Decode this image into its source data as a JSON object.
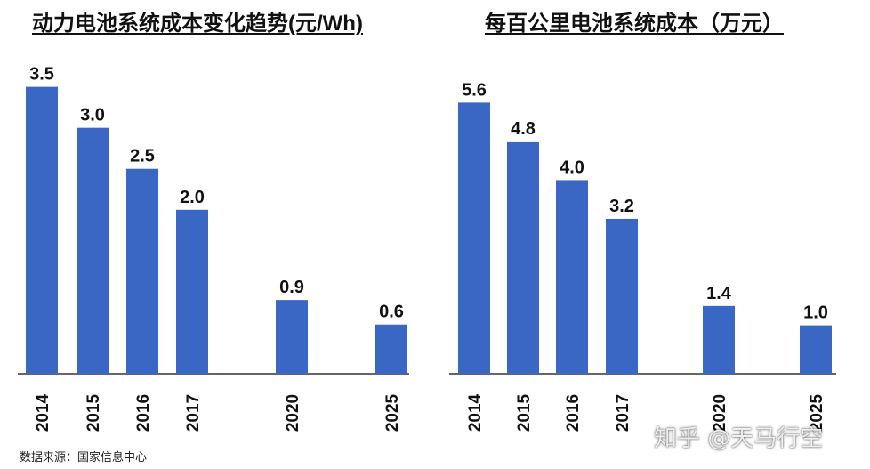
{
  "chart_data": [
    {
      "type": "bar",
      "title": "动力电池系统成本变化趋势(元/Wh)",
      "categories": [
        "2014",
        "2015",
        "2016",
        "2017",
        "2020",
        "2025"
      ],
      "values": [
        3.5,
        3.0,
        2.5,
        2.0,
        0.9,
        0.6
      ],
      "value_labels": [
        "3.5",
        "3.0",
        "2.5",
        "2.0",
        "0.9",
        "0.6"
      ],
      "ylim": [
        0,
        3.8
      ],
      "grid": false,
      "bar_color": "#3a66c4"
    },
    {
      "type": "bar",
      "title": "每百公里电池系统成本（万元）",
      "categories": [
        "2014",
        "2015",
        "2016",
        "2017",
        "2020",
        "2025"
      ],
      "values": [
        5.6,
        4.8,
        4.0,
        3.2,
        1.4,
        1.0
      ],
      "value_labels": [
        "5.6",
        "4.8",
        "4.0",
        "3.2",
        "1.4",
        "1.0"
      ],
      "ylim": [
        0,
        6.6
      ],
      "grid": false,
      "bar_color": "#3a66c4"
    }
  ],
  "source": "数据来源：国家信息中心",
  "watermark": "知乎 @天马行空"
}
